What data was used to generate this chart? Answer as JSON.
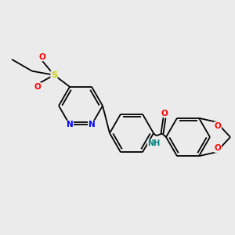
{
  "bg_color": "#ebebeb",
  "bond_color": "#000000",
  "atom_colors": {
    "N": "#0000ff",
    "O": "#ff0000",
    "S": "#cccc00",
    "NH": "#008080",
    "C": "#000000"
  },
  "figsize": [
    3.0,
    3.0
  ],
  "dpi": 100
}
